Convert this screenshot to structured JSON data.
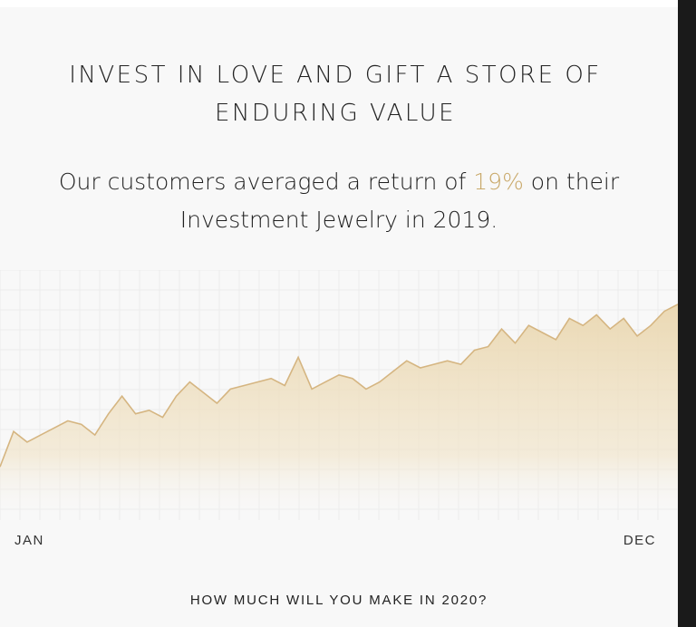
{
  "heading": {
    "line1": "INVEST IN LOVE AND GIFT A STORE OF",
    "line2": "ENDURING VALUE"
  },
  "intro": {
    "prefix": "Our customers averaged a return of ",
    "highlight": "19%",
    "suffix": " on their Investment Jewelry in 2019."
  },
  "chart_data": {
    "type": "area",
    "title": "",
    "xlabel": "",
    "ylabel": "",
    "tick_labels": {
      "start": "JAN",
      "end": "DEC"
    },
    "x": [
      0,
      2,
      4,
      6,
      8,
      10,
      12,
      14,
      16,
      18,
      20,
      22,
      24,
      26,
      28,
      30,
      32,
      34,
      36,
      38,
      40,
      42,
      44,
      46,
      48,
      50,
      52,
      54,
      56,
      58,
      60,
      62,
      64,
      66,
      68,
      70,
      72,
      74,
      76,
      78,
      80,
      82,
      84,
      86,
      88,
      90,
      92,
      94,
      96,
      98,
      100
    ],
    "values": [
      2,
      12,
      9,
      11,
      13,
      15,
      14,
      11,
      17,
      22,
      17,
      18,
      16,
      22,
      26,
      23,
      20,
      24,
      25,
      26,
      27,
      25,
      33,
      24,
      26,
      28,
      27,
      24,
      26,
      29,
      32,
      30,
      31,
      32,
      31,
      35,
      36,
      41,
      37,
      42,
      40,
      38,
      44,
      42,
      45,
      41,
      44,
      39,
      42,
      46,
      48
    ],
    "ylim": [
      0,
      50
    ],
    "grid": true,
    "colors": {
      "line": "#d5b581",
      "fill_top": "#ead7b0",
      "fill_bottom": "#f8f8f8",
      "grid": "#ececec"
    }
  },
  "cta": {
    "label": "HOW MUCH WILL YOU MAKE IN 2020?"
  },
  "colors": {
    "accent": "#c9a96a",
    "background": "#f8f8f8"
  }
}
